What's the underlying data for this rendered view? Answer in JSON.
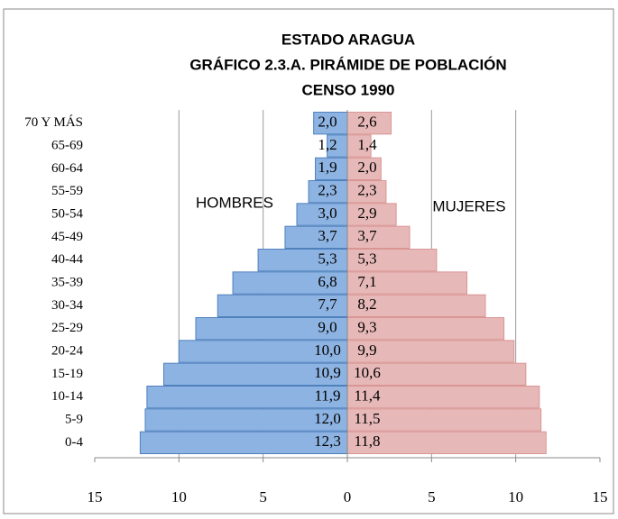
{
  "chart_data": {
    "type": "pyramid",
    "title": [
      "ESTADO ARAGUA",
      "GRÁFICO 2.3.A. PIRÁMIDE DE POBLACIÓN",
      "CENSO 1990"
    ],
    "categories": [
      "0-4",
      "5-9",
      "10-14",
      "15-19",
      "20-24",
      "25-29",
      "30-34",
      "35-39",
      "40-44",
      "45-49",
      "50-54",
      "55-59",
      "60-64",
      "65-69",
      "70 Y MÁS"
    ],
    "series": [
      {
        "name": "HOMBRES",
        "color": "#8db3e2",
        "border": "#4f81bd",
        "values": [
          12.3,
          12.0,
          11.9,
          10.9,
          10.0,
          9.0,
          7.7,
          6.8,
          5.3,
          3.7,
          3.0,
          2.3,
          1.9,
          1.2,
          2.0
        ],
        "value_labels": [
          "12,3",
          "12,0",
          "11,9",
          "10,9",
          "10,0",
          "9,0",
          "7,7",
          "6,8",
          "5,3",
          "3,7",
          "3,0",
          "2,3",
          "1,9",
          "1,2",
          "2,0"
        ]
      },
      {
        "name": "MUJERES",
        "color": "#e6b8b7",
        "border": "#d99694",
        "values": [
          11.8,
          11.5,
          11.4,
          10.6,
          9.9,
          9.3,
          8.2,
          7.1,
          5.3,
          3.7,
          2.9,
          2.3,
          2.0,
          1.4,
          2.6
        ],
        "value_labels": [
          "11,8",
          "11,5",
          "11,4",
          "10,6",
          "9,9",
          "9,3",
          "8,2",
          "7,1",
          "5,3",
          "3,7",
          "2,9",
          "2,3",
          "2,0",
          "1,4",
          "2,6"
        ]
      }
    ],
    "xlim": [
      -15,
      15
    ],
    "xticks": [
      {
        "value": -15,
        "label": "15"
      },
      {
        "value": -10,
        "label": "10"
      },
      {
        "value": -5,
        "label": "5"
      },
      0,
      5,
      10,
      15
    ],
    "grid": true
  }
}
